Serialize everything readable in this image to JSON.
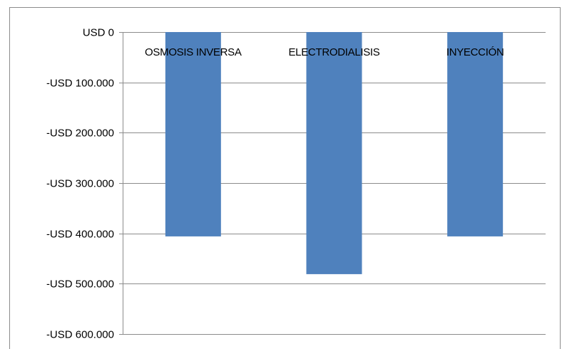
{
  "chart_data": {
    "type": "bar",
    "categories": [
      "OSMOSIS INVERSA",
      "ELECTRODIALISIS",
      "INYECCIÓN"
    ],
    "values": [
      -406000,
      -481000,
      -406000
    ],
    "ylim": [
      -600000,
      0
    ],
    "yticks": [
      0,
      -100000,
      -200000,
      -300000,
      -400000,
      -500000,
      -600000
    ],
    "ytick_labels": [
      "USD 0",
      "-USD 100.000",
      "-USD 200.000",
      "-USD 300.000",
      "-USD 400.000",
      "-USD 500.000",
      "-USD 600.000"
    ],
    "grid": true,
    "bar_color": "#4f81bd",
    "grid_color": "#8c8c8c"
  }
}
